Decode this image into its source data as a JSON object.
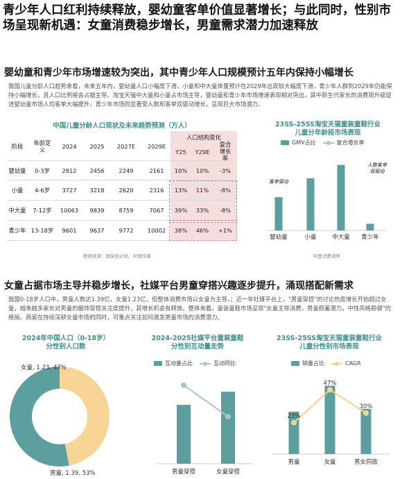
{
  "headline": "青少年人口红利持续释放，婴幼童客单价值显著增长；与此同时，性别市场呈现新机遇：女童消费稳步增长，男童需求潜力加速释放",
  "section1": {
    "title": "婴幼童和青少年市场增速较为突出，其中青少年人口规模预计五年内保持小幅增长",
    "paragraph": "我国儿童分龄人口趋势来看，未来五年内，婴幼童人口小幅度下滑，小童和中大童体量预计在2029年出现较大幅度下滑，青少年人群到2029年仍能保持小幅增长，且人口比例将会占据主导。淘宝天猫中大童和小童占市场主导，婴幼童和青少年市场增速表现相对突出，其中新生代家长的消费观升级促进婴幼童市场人均客单大幅提升，青少年市场则显著受人数和客单双驱动增长，呈现巨大市场潜力。"
  },
  "table": {
    "title": "中国儿童分龄人口现状及未来趋势预测（万人）",
    "group_header": "人口结构变化",
    "headers": [
      "阶段",
      "年龄定义",
      "2024",
      "2025",
      "2027E",
      "2029E",
      "Y25",
      "Y29E",
      "复合增长率"
    ],
    "rows": [
      [
        "婴幼童",
        "0-3岁",
        "2812",
        "2456",
        "2249",
        "2161",
        "10%",
        "10%",
        "-3%"
      ],
      [
        "小童",
        "4-6岁",
        "3727",
        "3218",
        "2620",
        "2316",
        "13%",
        "11%",
        "-8%"
      ],
      [
        "中大童",
        "7-12岁",
        "10063",
        "9839",
        "8759",
        "7067",
        "39%",
        "33%",
        "-8%"
      ],
      [
        "青少年",
        "13-18岁",
        "9601",
        "9637",
        "9772",
        "10002",
        "38%",
        "46%",
        "+1%"
      ]
    ],
    "source": "数据来源：国家统计局、中国传媒"
  },
  "chart1": {
    "title_line1": "23SS-25SS淘宝天猫童装童鞋行业",
    "title_line2": "儿童分年龄段市场表现",
    "legend": [
      "GMV占比",
      "复合增长率"
    ],
    "annotations": [
      "客单驱动",
      "人数客单双驱动"
    ],
    "source": "阿里消费洞察",
    "color_bar": "#5d9e9e",
    "color_line": "#a8c6c3"
  },
  "section2": {
    "title": "女童占据市场主导并稳步增长，社媒平台男童穿搭兴趣逐步提升，涌现搭配新需求",
    "paragraph": "我国0-18岁人口中，男童人数达1.39亿，女童1.23亿，但整体消费市场以女童为主导。；近一年社媒平台上，\"男童穿搭\"的讨论热度增长开始超过女童，越来越多家长对男童的服饰穿搭关注度提升，其增长机会有释放。整体来看，童装童鞋市场呈现\"女童主导消费，男童稳蓄潜力，中性风格稳健\"的格局。商家在持续深耕女童市场的同时，可重点关注如何激发男童市场的消费潜力。"
  },
  "chart2": {
    "title_line1": "2024年中国人口（0-18岁）",
    "title_line2": "分性别人口数",
    "label_female": "女童, 1.23, 47%",
    "label_male": "男童, 1.39, 53%",
    "color_female": "#f7d597",
    "color_male": "#5d9e9e"
  },
  "chart3": {
    "title_line1": "2024-2025社媒平台童装童鞋",
    "title_line2": "分性别互动量走势",
    "legend": [
      "互动量占比",
      "互动同比"
    ],
    "color_bar": "#5d9e9e",
    "color_line": "#a8c6c3"
  },
  "chart4": {
    "title_line1": "23SS-25SS淘宝天猫童装童鞋行业",
    "title_line2": "儿童分性别市场表现",
    "legend": [
      "销量占比",
      "CAGR"
    ],
    "color_bar": "#5d9e9e",
    "color_line": "#f7d28a"
  },
  "chart_data": [
    {
      "type": "bar",
      "categories": [
        "婴幼童",
        "小童",
        "中大童",
        "青少年"
      ],
      "series": [
        {
          "name": "GMV占比",
          "values": [
            30,
            47,
            59,
            6
          ]
        },
        {
          "name": "复合增长率",
          "values": [
            null,
            null,
            null,
            null
          ]
        }
      ],
      "ylim": [
        0,
        70
      ]
    },
    {
      "type": "pie",
      "categories": [
        "女童",
        "男童"
      ],
      "values": [
        1.23,
        1.39
      ],
      "percent": [
        47,
        53
      ]
    },
    {
      "type": "bar",
      "categories": [
        "男童穿搭",
        "女童穿搭"
      ],
      "series": [
        {
          "name": "互动量占比",
          "values": [
            45,
            55
          ]
        },
        {
          "name": "互动同比",
          "values": [
            60,
            36
          ]
        }
      ],
      "ylim": [
        0,
        70
      ]
    },
    {
      "type": "bar",
      "categories": [
        "男童",
        "女童",
        "男女同款"
      ],
      "series": [
        {
          "name": "销量占比",
          "values": [
            31,
            50,
            33
          ]
        },
        {
          "name": "CAGR",
          "values": [
            23,
            47,
            30
          ]
        }
      ],
      "data_labels": [
        "23%",
        "47%",
        "30%"
      ],
      "ylim": [
        0,
        60
      ]
    }
  ]
}
